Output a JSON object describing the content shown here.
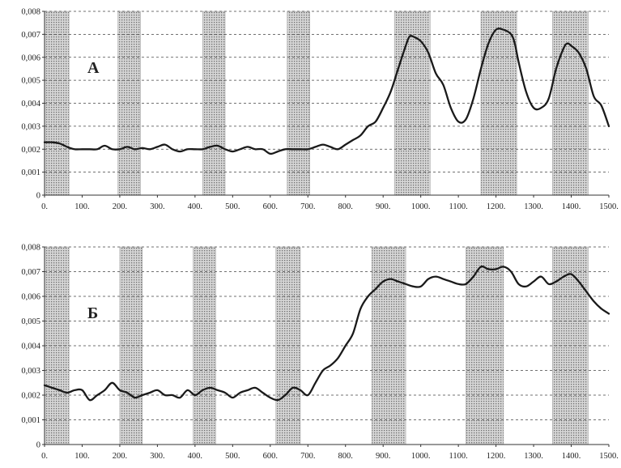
{
  "chart_data": [
    {
      "type": "line",
      "panel_label": "А",
      "xlim": [
        0,
        1500
      ],
      "ylim": [
        0,
        0.008
      ],
      "x_ticks": [
        "0.",
        "100.",
        "200.",
        "300.",
        "400.",
        "500.",
        "600.",
        "700.",
        "800.",
        "900.",
        "1000.",
        "1100.",
        "1200.",
        "1300.",
        "1400.",
        "1500."
      ],
      "x_tick_values": [
        0,
        100,
        200,
        300,
        400,
        500,
        600,
        700,
        800,
        900,
        1000,
        1100,
        1200,
        1300,
        1400,
        1500
      ],
      "y_ticks": [
        "0",
        "0,001",
        "0,002",
        "0,003",
        "0,004",
        "0,005",
        "0,006",
        "0,007",
        "0,008"
      ],
      "y_tick_values": [
        0,
        0.001,
        0.002,
        0.003,
        0.004,
        0.005,
        0.006,
        0.007,
        0.008
      ],
      "grid": true,
      "shaded_ranges": [
        [
          0,
          65
        ],
        [
          195,
          255
        ],
        [
          420,
          480
        ],
        [
          645,
          705
        ],
        [
          930,
          1025
        ],
        [
          1160,
          1255
        ],
        [
          1350,
          1445
        ]
      ],
      "series": [
        {
          "x": [
            0,
            20,
            40,
            60,
            80,
            100,
            120,
            140,
            160,
            180,
            200,
            220,
            240,
            260,
            280,
            300,
            320,
            340,
            360,
            380,
            400,
            420,
            440,
            460,
            480,
            500,
            520,
            540,
            560,
            580,
            600,
            620,
            640,
            660,
            680,
            700,
            720,
            740,
            760,
            780,
            800,
            820,
            840,
            860,
            880,
            900,
            920,
            940,
            960,
            970,
            980,
            1000,
            1020,
            1040,
            1060,
            1080,
            1100,
            1120,
            1140,
            1160,
            1180,
            1200,
            1220,
            1240,
            1250,
            1260,
            1280,
            1300,
            1320,
            1340,
            1360,
            1380,
            1390,
            1400,
            1420,
            1440,
            1460,
            1480,
            1500
          ],
          "y": [
            0.0023,
            0.0023,
            0.00225,
            0.0021,
            0.002,
            0.002,
            0.002,
            0.002,
            0.00215,
            0.002,
            0.002,
            0.0021,
            0.002,
            0.00205,
            0.002,
            0.0021,
            0.0022,
            0.002,
            0.0019,
            0.002,
            0.002,
            0.002,
            0.0021,
            0.00215,
            0.002,
            0.0019,
            0.002,
            0.0021,
            0.002,
            0.002,
            0.0018,
            0.0019,
            0.002,
            0.002,
            0.002,
            0.002,
            0.0021,
            0.0022,
            0.0021,
            0.002,
            0.0022,
            0.0024,
            0.0026,
            0.003,
            0.0032,
            0.0038,
            0.0045,
            0.0055,
            0.0065,
            0.0069,
            0.0069,
            0.0067,
            0.0062,
            0.0053,
            0.0048,
            0.0038,
            0.0032,
            0.0033,
            0.0042,
            0.0055,
            0.0066,
            0.0072,
            0.0072,
            0.007,
            0.0066,
            0.0058,
            0.0045,
            0.0038,
            0.0038,
            0.0042,
            0.0055,
            0.0064,
            0.0066,
            0.0065,
            0.0062,
            0.0055,
            0.0043,
            0.0039,
            0.003
          ]
        }
      ]
    },
    {
      "type": "line",
      "panel_label": "Б",
      "xlim": [
        0,
        1500
      ],
      "ylim": [
        0,
        0.008
      ],
      "x_ticks": [
        "0.",
        "100.",
        "200.",
        "300.",
        "400.",
        "500.",
        "600.",
        "700.",
        "800.",
        "900.",
        "1000.",
        "1100.",
        "1200.",
        "1300.",
        "1400.",
        "1500."
      ],
      "x_tick_values": [
        0,
        100,
        200,
        300,
        400,
        500,
        600,
        700,
        800,
        900,
        1000,
        1100,
        1200,
        1300,
        1400,
        1500
      ],
      "y_ticks": [
        "0",
        "0,001",
        "0,002",
        "0,003",
        "0,004",
        "0,005",
        "0,006",
        "0,007",
        "0,008"
      ],
      "y_tick_values": [
        0,
        0.001,
        0.002,
        0.003,
        0.004,
        0.005,
        0.006,
        0.007,
        0.008
      ],
      "grid": true,
      "shaded_ranges": [
        [
          0,
          65
        ],
        [
          200,
          260
        ],
        [
          395,
          455
        ],
        [
          615,
          680
        ],
        [
          870,
          960
        ],
        [
          1120,
          1220
        ],
        [
          1350,
          1445
        ]
      ],
      "series": [
        {
          "x": [
            0,
            20,
            40,
            60,
            80,
            100,
            120,
            140,
            160,
            180,
            200,
            220,
            240,
            260,
            280,
            300,
            320,
            340,
            360,
            380,
            400,
            420,
            440,
            460,
            480,
            500,
            520,
            540,
            560,
            580,
            600,
            620,
            640,
            660,
            680,
            700,
            720,
            740,
            760,
            780,
            800,
            820,
            840,
            860,
            880,
            900,
            920,
            940,
            960,
            980,
            1000,
            1020,
            1040,
            1060,
            1080,
            1100,
            1120,
            1140,
            1160,
            1180,
            1200,
            1220,
            1240,
            1260,
            1280,
            1300,
            1320,
            1340,
            1360,
            1380,
            1400,
            1420,
            1440,
            1460,
            1480,
            1500
          ],
          "y": [
            0.0024,
            0.0023,
            0.0022,
            0.0021,
            0.0022,
            0.0022,
            0.0018,
            0.002,
            0.0022,
            0.0025,
            0.0022,
            0.0021,
            0.0019,
            0.002,
            0.0021,
            0.0022,
            0.002,
            0.002,
            0.0019,
            0.0022,
            0.002,
            0.0022,
            0.0023,
            0.0022,
            0.0021,
            0.0019,
            0.0021,
            0.0022,
            0.0023,
            0.0021,
            0.0019,
            0.0018,
            0.002,
            0.0023,
            0.0022,
            0.002,
            0.0025,
            0.003,
            0.0032,
            0.0035,
            0.004,
            0.0045,
            0.0055,
            0.006,
            0.0063,
            0.0066,
            0.0067,
            0.0066,
            0.0065,
            0.0064,
            0.0064,
            0.0067,
            0.0068,
            0.0067,
            0.0066,
            0.0065,
            0.0065,
            0.0068,
            0.0072,
            0.0071,
            0.0071,
            0.0072,
            0.007,
            0.0065,
            0.0064,
            0.0066,
            0.0068,
            0.0065,
            0.0066,
            0.0068,
            0.0069,
            0.0066,
            0.0062,
            0.0058,
            0.0055,
            0.0053
          ]
        }
      ]
    }
  ]
}
